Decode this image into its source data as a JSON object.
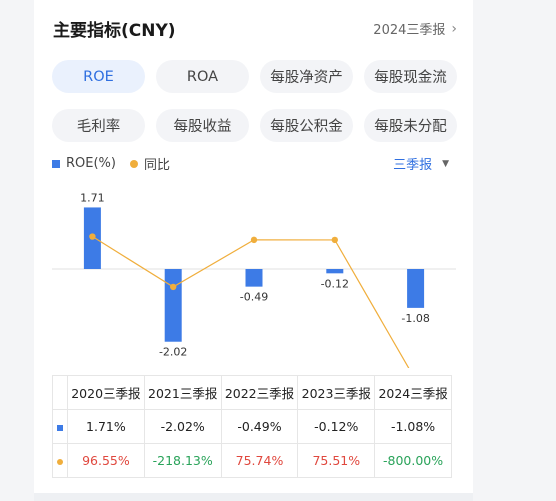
{
  "header": {
    "title": "主要指标(CNY)",
    "period": "2024三季报",
    "chevron_icon": "chevron-right-icon"
  },
  "tabs": [
    {
      "label": "ROE",
      "active": true
    },
    {
      "label": "ROA",
      "active": false
    },
    {
      "label": "每股净资产",
      "active": false
    },
    {
      "label": "每股现金流",
      "active": false
    },
    {
      "label": "毛利率",
      "active": false
    },
    {
      "label": "每股收益",
      "active": false
    },
    {
      "label": "每股公积金",
      "active": false
    },
    {
      "label": "每股未分配",
      "active": false
    }
  ],
  "legend": {
    "bar_label": "ROE(%)",
    "line_label": "同比"
  },
  "period_select": {
    "value": "三季报",
    "icon": "caret-down-icon"
  },
  "colors": {
    "bar": "#3d7be6",
    "line": "#f0ae3c",
    "accent": "#2f6fe0",
    "positive": "#e0483e",
    "negative": "#2aa35a"
  },
  "chart_data": {
    "type": "bar",
    "categories": [
      "2020三季报",
      "2021三季报",
      "2022三季报",
      "2023三季报",
      "2024三季报"
    ],
    "series": [
      {
        "name": "ROE(%)",
        "type": "bar",
        "values": [
          1.71,
          -2.02,
          -0.49,
          -0.12,
          -1.08
        ],
        "labels": [
          "1.71",
          "-2.02",
          "-0.49",
          "-0.12",
          "-1.08"
        ]
      },
      {
        "name": "同比",
        "type": "line",
        "values": [
          96.55,
          -218.13,
          75.74,
          75.51,
          -800.0
        ]
      }
    ]
  },
  "table": {
    "headers": [
      "2020三季报",
      "2021三季报",
      "2022三季报",
      "2023三季报",
      "2024三季报"
    ],
    "roe_row": [
      "1.71%",
      "-2.02%",
      "-0.49%",
      "-0.12%",
      "-1.08%"
    ],
    "yoy_row": [
      "96.55%",
      "-218.13%",
      "75.74%",
      "75.51%",
      "-800.00%"
    ],
    "yoy_sign": [
      "pos",
      "neg",
      "pos",
      "pos",
      "neg"
    ]
  }
}
